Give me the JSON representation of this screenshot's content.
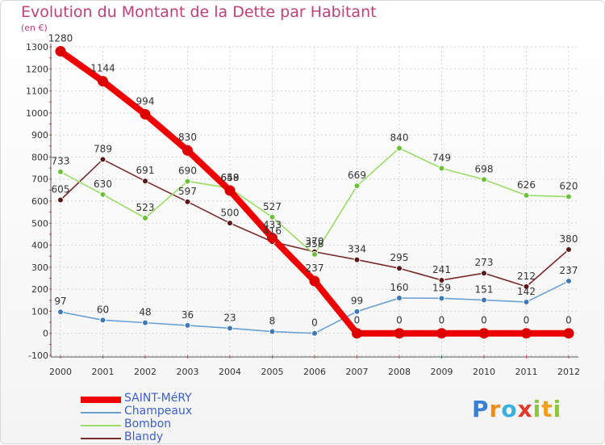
{
  "title": "Evolution du Montant de la Dette par Habitant",
  "unit": "(en €)",
  "logo": "Proxiti",
  "chart_data": {
    "type": "line",
    "title": "Evolution du Montant de la Dette par Habitant",
    "ylabel": "(en €)",
    "xlabel": "",
    "x": [
      "2000",
      "2001",
      "2002",
      "2003",
      "2004",
      "2005",
      "2006",
      "2007",
      "2008",
      "2009",
      "2010",
      "2011",
      "2012"
    ],
    "ylim": [
      -100,
      1300
    ],
    "yticks": [
      -100,
      0,
      100,
      200,
      300,
      400,
      500,
      600,
      700,
      800,
      900,
      1000,
      1100,
      1200,
      1300
    ],
    "grid": true,
    "legend_position": "bottom-left",
    "series": [
      {
        "name": "SAINT-MéRY",
        "color": "#ee0000",
        "values": [
          1280,
          1144,
          994,
          830,
          648,
          433,
          237,
          0,
          0,
          0,
          0,
          0,
          0
        ]
      },
      {
        "name": "Champeaux",
        "color": "#6a9fd4",
        "values": [
          97,
          60,
          48,
          36,
          23,
          8,
          0,
          99,
          160,
          159,
          151,
          142,
          237
        ]
      },
      {
        "name": "Bombon",
        "color": "#99dd66",
        "values": [
          733,
          630,
          523,
          690,
          659,
          527,
          358,
          669,
          840,
          749,
          698,
          626,
          620
        ]
      },
      {
        "name": "Blandy",
        "color": "#7a2a2a",
        "values": [
          605,
          789,
          691,
          597,
          500,
          416,
          370,
          334,
          295,
          241,
          273,
          212,
          380
        ]
      }
    ]
  }
}
